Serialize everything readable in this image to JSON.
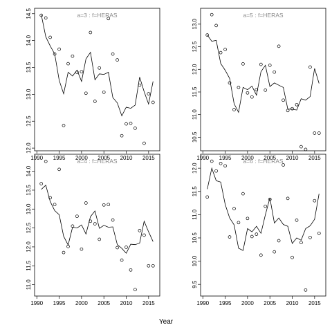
{
  "chart_data": {
    "type": "scatter",
    "xlabel": "Year",
    "legend": "none",
    "grid": false,
    "panels": [
      {
        "title": "a=3  :  f=HERAS",
        "xlim": [
          1989.5,
          2017.5
        ],
        "ylim": [
          11.95,
          14.6
        ],
        "yticks": [
          "12.0",
          "12.5",
          "13.0",
          "13.5",
          "14.0",
          "14.5"
        ],
        "xticks": [
          "1990",
          "1995",
          "2000",
          "2005",
          "2010",
          "2015"
        ],
        "observed": {
          "x": [
            1991,
            1992,
            1993,
            1994,
            1995,
            1996,
            1997,
            1998,
            1999,
            2000,
            2001,
            2002,
            2003,
            2004,
            2005,
            2006,
            2007,
            2008,
            2009,
            2010,
            2011,
            2012,
            2013,
            2014,
            2015,
            2016
          ],
          "y": [
            14.47,
            14.42,
            14.06,
            13.75,
            13.84,
            12.42,
            13.57,
            13.71,
            13.41,
            13.42,
            13.02,
            14.15,
            12.87,
            13.49,
            13.04,
            14.41,
            13.75,
            13.64,
            12.23,
            12.45,
            12.46,
            12.37,
            13.17,
            12.09,
            13.01,
            12.85
          ]
        },
        "fitted": {
          "x": [
            1991,
            1992,
            1993,
            1994,
            1995,
            1996,
            1997,
            1998,
            1999,
            2000,
            2001,
            2002,
            2003,
            2004,
            2005,
            2006,
            2007,
            2008,
            2009,
            2010,
            2011,
            2012,
            2013,
            2014,
            2015,
            2016
          ],
          "y": [
            14.48,
            14.07,
            13.9,
            13.75,
            13.26,
            13.01,
            13.41,
            13.34,
            13.45,
            13.24,
            13.66,
            13.78,
            13.27,
            13.38,
            13.37,
            13.41,
            12.94,
            12.84,
            12.6,
            12.76,
            12.74,
            12.8,
            13.32,
            13.05,
            12.82,
            13.24
          ]
        }
      },
      {
        "title": "a=5  :  f=HERAS",
        "xlim": [
          1989.5,
          2017.5
        ],
        "ylim": [
          10.2,
          13.35
        ],
        "yticks": [
          "10.5",
          "11.0",
          "11.5",
          "12.0",
          "12.5",
          "13.0"
        ],
        "xticks": [
          "1990",
          "1995",
          "2000",
          "2005",
          "2010",
          "2015"
        ],
        "observed": {
          "x": [
            1991,
            1992,
            1993,
            1994,
            1995,
            1996,
            1997,
            1998,
            1999,
            2000,
            2001,
            2002,
            2003,
            2004,
            2005,
            2006,
            2007,
            2008,
            2009,
            2010,
            2011,
            2012,
            2013,
            2014,
            2015,
            2016
          ],
          "y": [
            12.76,
            13.21,
            12.97,
            12.37,
            12.44,
            11.7,
            11.11,
            11.6,
            12.12,
            11.48,
            11.39,
            11.55,
            12.11,
            11.54,
            12.09,
            11.94,
            12.51,
            11.32,
            11.09,
            11.13,
            11.22,
            10.29,
            10.23,
            12.05,
            10.59,
            10.59
          ]
        },
        "fitted": {
          "x": [
            1991,
            1992,
            1993,
            1994,
            1995,
            1996,
            1997,
            1998,
            1999,
            2000,
            2001,
            2002,
            2003,
            2004,
            2005,
            2006,
            2007,
            2008,
            2009,
            2010,
            2011,
            2012,
            2013,
            2014,
            2015,
            2016
          ],
          "y": [
            12.76,
            12.62,
            12.64,
            12.13,
            11.98,
            11.8,
            11.24,
            11.05,
            11.6,
            11.55,
            11.63,
            11.43,
            11.95,
            12.09,
            11.62,
            11.7,
            11.65,
            11.6,
            11.12,
            11.12,
            11.1,
            11.35,
            11.32,
            11.4,
            12.02,
            11.69
          ]
        }
      },
      {
        "title": "a=4  :  f=HERAS",
        "xlim": [
          1989.5,
          2017.5
        ],
        "ylim": [
          10.7,
          14.45
        ],
        "yticks": [
          "11.0",
          "11.5",
          "12.0",
          "12.5",
          "13.0",
          "13.5",
          "14.0"
        ],
        "xticks": [
          "1990",
          "1995",
          "2000",
          "2005",
          "2010",
          "2015"
        ],
        "observed": {
          "x": [
            1991,
            1992,
            1993,
            1994,
            1995,
            1996,
            1997,
            1998,
            1999,
            2000,
            2001,
            2002,
            2003,
            2004,
            2005,
            2006,
            2007,
            2008,
            2009,
            2010,
            2011,
            2012,
            2013,
            2014,
            2015,
            2016
          ],
          "y": [
            13.67,
            14.26,
            13.3,
            13.12,
            14.05,
            11.85,
            12.01,
            12.55,
            12.81,
            11.94,
            13.16,
            12.68,
            12.61,
            12.2,
            13.11,
            13.12,
            12.71,
            11.98,
            11.65,
            11.99,
            11.39,
            10.87,
            12.43,
            12.31,
            11.5,
            11.5
          ]
        },
        "fitted": {
          "x": [
            1991,
            1992,
            1993,
            1994,
            1995,
            1996,
            1997,
            1998,
            1999,
            2000,
            2001,
            2002,
            2003,
            2004,
            2005,
            2006,
            2007,
            2008,
            2009,
            2010,
            2011,
            2012,
            2013,
            2014,
            2015,
            2016
          ],
          "y": [
            13.52,
            13.63,
            13.2,
            12.96,
            12.85,
            12.28,
            12.05,
            12.52,
            12.5,
            12.58,
            12.34,
            12.8,
            12.95,
            12.49,
            12.57,
            12.52,
            12.53,
            12.06,
            11.96,
            11.83,
            12.07,
            12.06,
            12.1,
            12.68,
            12.4,
            12.14
          ]
        }
      },
      {
        "title": "a=6  :  f=HERAS",
        "xlim": [
          1989.5,
          2017.5
        ],
        "ylim": [
          9.25,
          12.3
        ],
        "yticks": [
          "9.5",
          "10.0",
          "10.5",
          "11.0",
          "11.5",
          "12.0"
        ],
        "xticks": [
          "1990",
          "1995",
          "2000",
          "2005",
          "2010",
          "2015"
        ],
        "observed": {
          "x": [
            1991,
            1992,
            1993,
            1994,
            1995,
            1996,
            1997,
            1998,
            1999,
            2000,
            2001,
            2002,
            2003,
            2004,
            2005,
            2006,
            2007,
            2008,
            2009,
            2010,
            2011,
            2012,
            2013,
            2014,
            2015,
            2016
          ],
          "y": [
            11.38,
            12.15,
            11.94,
            12.1,
            12.05,
            10.52,
            11.13,
            10.83,
            11.45,
            10.92,
            10.53,
            10.58,
            10.13,
            11.18,
            11.33,
            10.2,
            10.44,
            12.07,
            11.35,
            10.08,
            10.88,
            10.4,
            9.38,
            10.51,
            11.3,
            10.6
          ]
        },
        "fitted": {
          "x": [
            1991,
            1992,
            1993,
            1994,
            1995,
            1996,
            1997,
            1998,
            1999,
            2000,
            2001,
            2002,
            2003,
            2004,
            2005,
            2006,
            2007,
            2008,
            2009,
            2010,
            2011,
            2012,
            2013,
            2014,
            2015,
            2016
          ],
          "y": [
            11.55,
            12.0,
            11.73,
            11.7,
            11.22,
            10.93,
            10.78,
            10.28,
            10.23,
            10.7,
            10.63,
            10.75,
            10.6,
            11.0,
            11.36,
            10.82,
            10.93,
            10.79,
            10.75,
            10.38,
            10.5,
            10.45,
            10.7,
            10.76,
            10.9,
            11.45
          ]
        }
      }
    ]
  }
}
